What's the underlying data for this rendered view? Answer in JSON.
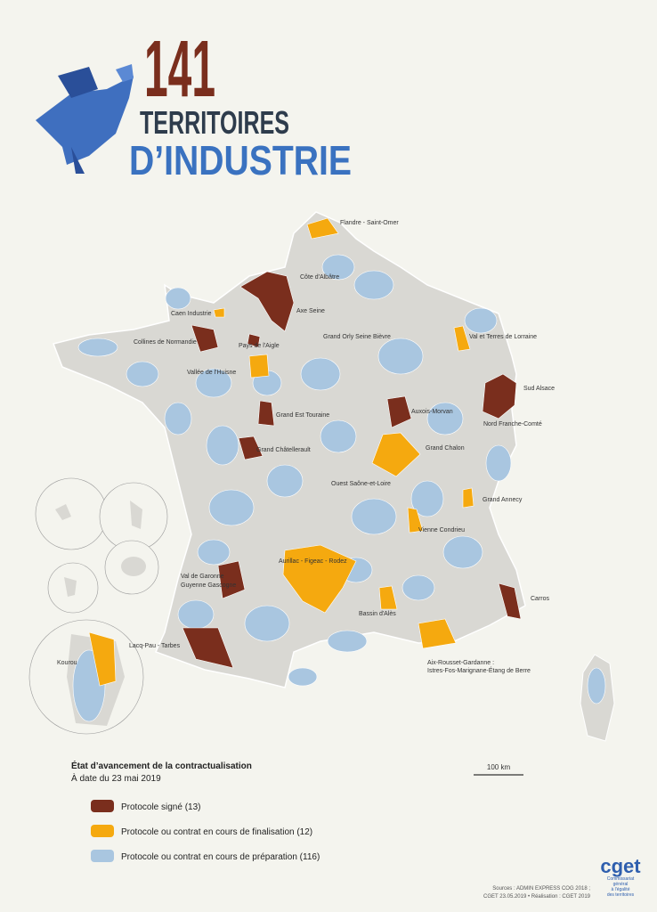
{
  "header": {
    "number": "141",
    "line1": "TERRITOIRES",
    "line2": "D’INDUSTRIE"
  },
  "labels": [
    "Flandre - Saint-Omer",
    "Côte d'Albâtre",
    "Caen Industrie",
    "Axe Seine",
    "Grand Orly Seine Bièvre",
    "Val et Terres de Lorraine",
    "Collines de Normandie",
    "Pays de l'Aigle",
    "Vallée de l'Huisne",
    "Sud Alsace",
    "Grand Est Touraine",
    "Auxois-Morvan",
    "Nord Franche-Comté",
    "Grand Châtellerault",
    "Grand Chalon",
    "Ouest Saône-et-Loire",
    "Grand Annecy",
    "Vienne Condrieu",
    "Aurillac - Figeac - Rodez",
    "Val de Garonne",
    "Guyenne Gascogne",
    "Carros",
    "Bassin d'Alès",
    "Lacq-Pau - Tarbes",
    "Kourou",
    "Aix-Rousset-Gardanne :",
    "Istres-Fos-Marignane-Étang de Berre"
  ],
  "legend": {
    "title": "État d’avancement de la contractualisation",
    "date": "À date du 23 mai 2019",
    "items": [
      {
        "label": "Protocole signé (13)",
        "color": "#7a2e1d"
      },
      {
        "label": "Protocole ou contrat en cours de finalisation (12)",
        "color": "#f5a90f"
      },
      {
        "label": "Protocole ou contrat en cours de préparation (116)",
        "color": "#a9c6e0"
      }
    ]
  },
  "scale": "100 km",
  "sources": [
    "Sources : ADMIN EXPRESS COG 2018 ;",
    "CGET 23.05.2019 • Réalisation : CGET 2019"
  ],
  "logo": {
    "name": "cget",
    "subtitle": [
      "Commissariat",
      "général",
      "à l'égalité",
      "des territoires"
    ]
  }
}
